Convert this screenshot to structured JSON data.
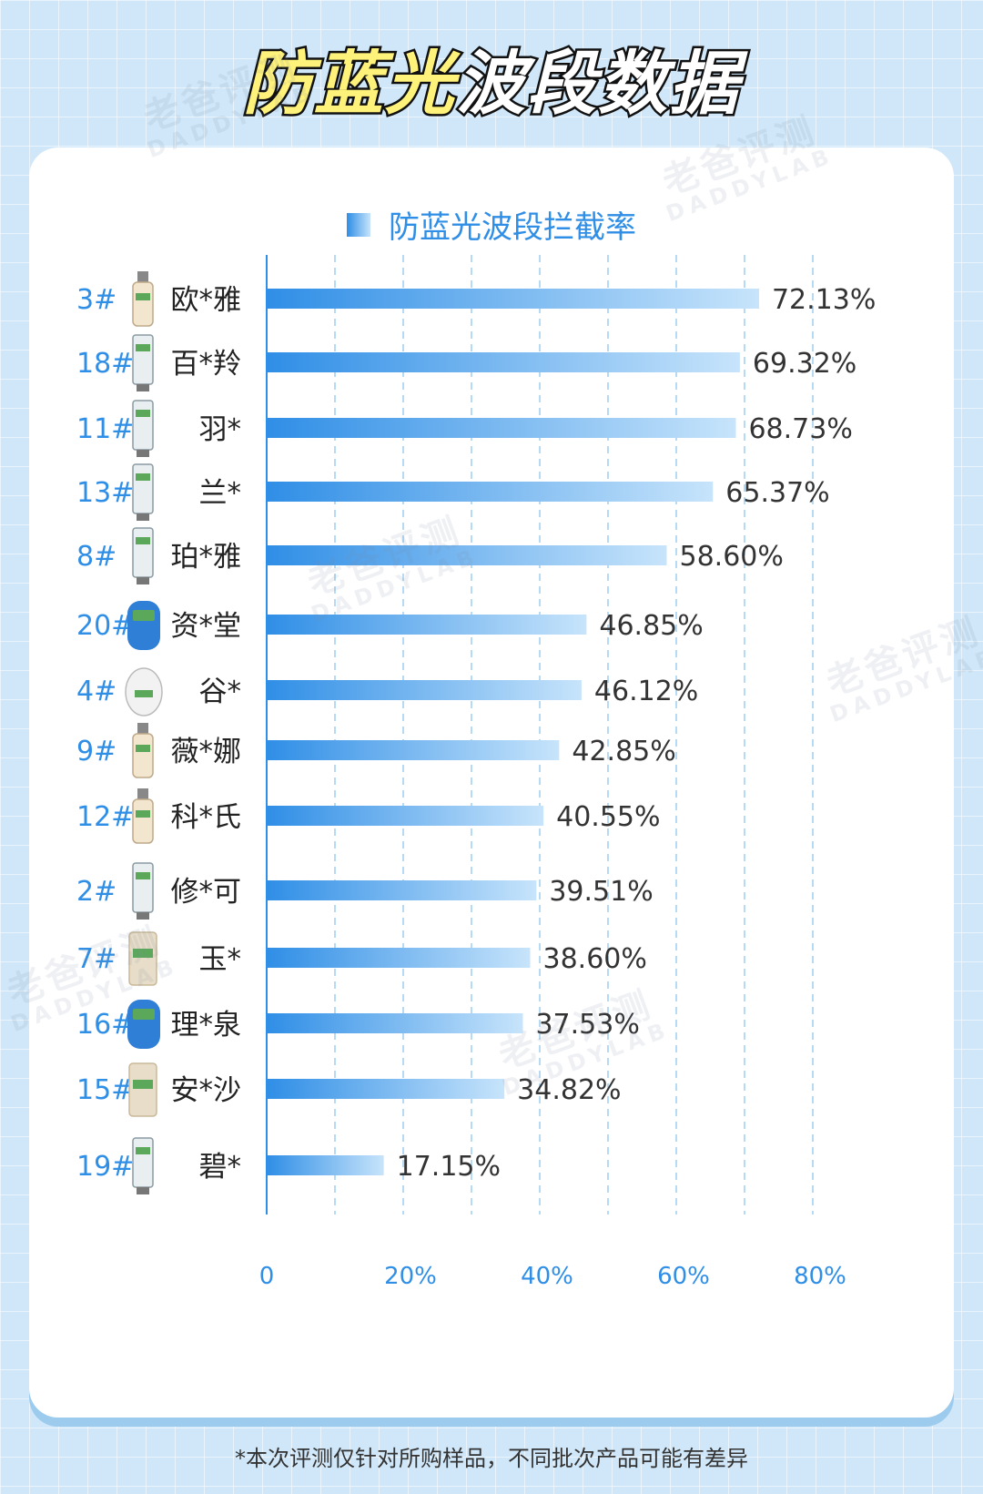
{
  "title": {
    "part1": "防蓝光",
    "part2": "波段数据"
  },
  "watermark": {
    "line1": "老爸评测",
    "line2": "DADDYLAB"
  },
  "footnote": "*本次评测仅针对所购样品，不同批次产品可能有差异",
  "colors": {
    "bar_start": "#2f8ee6",
    "bar_end": "#c7e4fb",
    "index_label": "#2f8ee6",
    "axis": "#2f8ee6",
    "background": "#cfe7f9"
  },
  "chart_data": {
    "type": "bar",
    "orientation": "horizontal",
    "legend": "防蓝光波段拦截率",
    "legend_position": "top",
    "grid": "vertical-dashed",
    "xlim": [
      0,
      80
    ],
    "x_ticks": [
      "0",
      "20%",
      "40%",
      "60%",
      "80%"
    ],
    "items": [
      {
        "index": "3#",
        "name": "欧*雅",
        "value": 72.13,
        "label": "72.13%",
        "icon": "spray-bottle-icon"
      },
      {
        "index": "18#",
        "name": "百*羚",
        "value": 69.32,
        "label": "69.32%",
        "icon": "tube-icon"
      },
      {
        "index": "11#",
        "name": "羽*",
        "value": 68.73,
        "label": "68.73%",
        "icon": "tube-icon"
      },
      {
        "index": "13#",
        "name": "兰*",
        "value": 65.37,
        "label": "65.37%",
        "icon": "tube-icon"
      },
      {
        "index": "8#",
        "name": "珀*雅",
        "value": 58.6,
        "label": "58.60%",
        "icon": "tube-icon"
      },
      {
        "index": "20#",
        "name": "资*堂",
        "value": 46.85,
        "label": "46.85%",
        "icon": "bottle-icon"
      },
      {
        "index": "4#",
        "name": "谷*",
        "value": 46.12,
        "label": "46.12%",
        "icon": "pouch-icon"
      },
      {
        "index": "9#",
        "name": "薇*娜",
        "value": 42.85,
        "label": "42.85%",
        "icon": "spray-bottle-icon"
      },
      {
        "index": "12#",
        "name": "科*氏",
        "value": 40.55,
        "label": "40.55%",
        "icon": "spray-bottle-icon"
      },
      {
        "index": "2#",
        "name": "修*可",
        "value": 39.51,
        "label": "39.51%",
        "icon": "tube-icon"
      },
      {
        "index": "7#",
        "name": "玉*",
        "value": 38.6,
        "label": "38.60%",
        "icon": "stick-icon"
      },
      {
        "index": "16#",
        "name": "理*泉",
        "value": 37.53,
        "label": "37.53%",
        "icon": "bottle-icon"
      },
      {
        "index": "15#",
        "name": "安*沙",
        "value": 34.82,
        "label": "34.82%",
        "icon": "stick-icon"
      },
      {
        "index": "19#",
        "name": "碧*",
        "value": 17.15,
        "label": "17.15%",
        "icon": "tube-icon"
      }
    ]
  }
}
